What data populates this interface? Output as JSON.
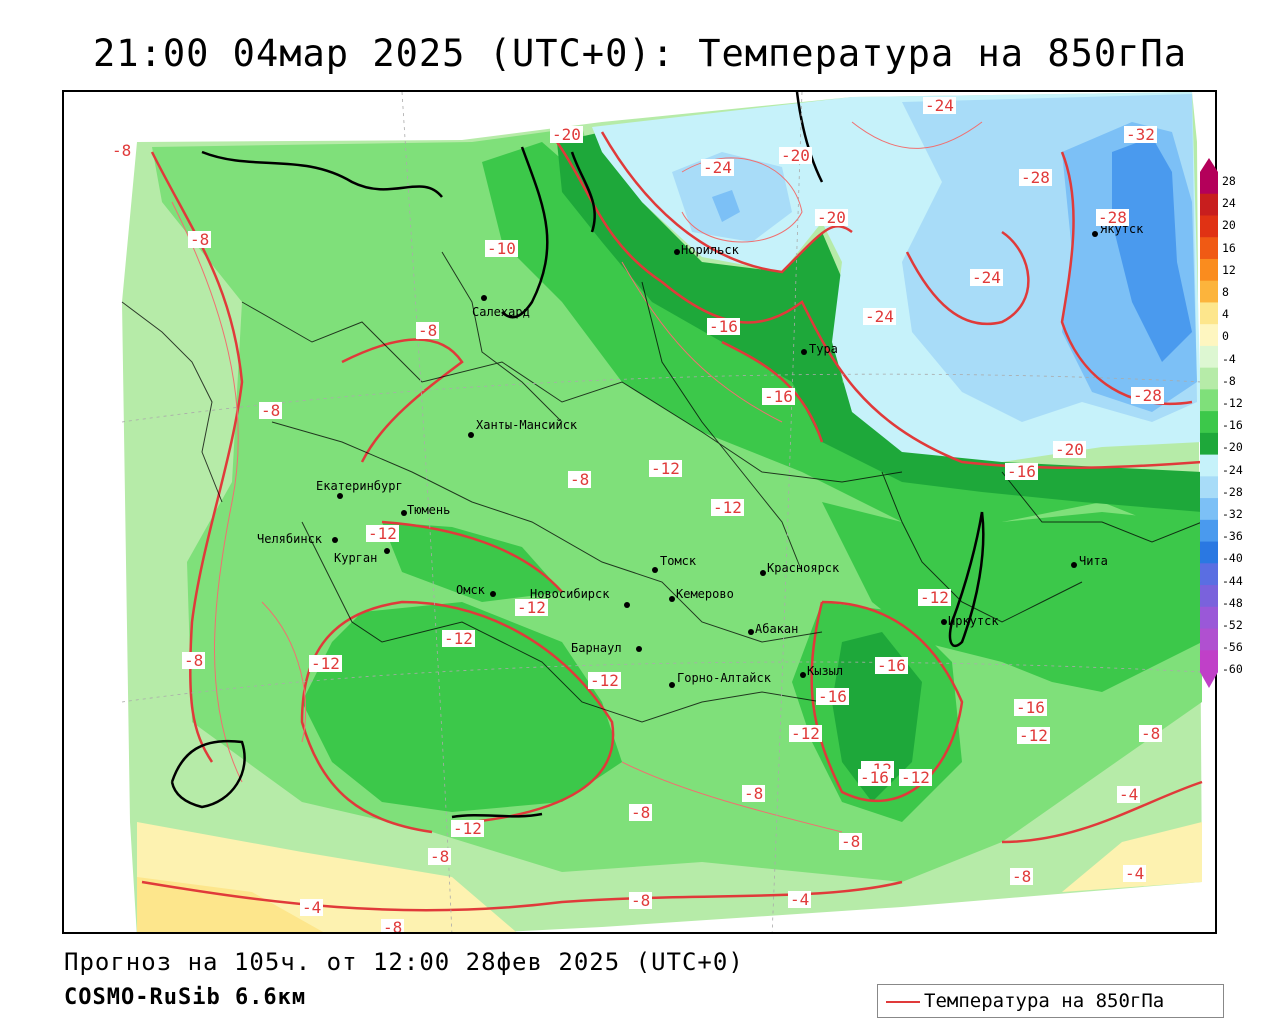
{
  "title": "21:00 04мар 2025 (UTC+0): Температура на 850гПа",
  "footer": {
    "forecast": "Прогноз на 105ч. от 12:00 28фев 2025 (UTC+0)",
    "model": "COSMO-RuSib 6.6км"
  },
  "legend": {
    "label": "Температура на 850гПа",
    "line_color": "#e03a3a"
  },
  "colorbar": {
    "ticks": [
      "28",
      "24",
      "20",
      "16",
      "12",
      "8",
      "4",
      "0",
      "-4",
      "-8",
      "-12",
      "-16",
      "-20",
      "-24",
      "-28",
      "-32",
      "-36",
      "-40",
      "-44",
      "-48",
      "-52",
      "-56",
      "-60"
    ],
    "colors": [
      "#b4005a",
      "#c81e1e",
      "#e03214",
      "#f05a14",
      "#fa8c1e",
      "#fcb43c",
      "#fde68c",
      "#fef6c0",
      "#ddf7d2",
      "#b6eba8",
      "#7fe07a",
      "#3cc84a",
      "#1ea83a",
      "#c6f2fa",
      "#a8dcf8",
      "#7cc0f6",
      "#4a9aee",
      "#2a78e2",
      "#5a6ee2",
      "#7a62dc",
      "#9a58d8",
      "#b050d0",
      "#c040c8"
    ]
  },
  "cities": [
    {
      "name": "Норильск"
    },
    {
      "name": "Салехард"
    },
    {
      "name": "Тура"
    },
    {
      "name": "Якутск"
    },
    {
      "name": "Ханты-Мансийск"
    },
    {
      "name": "Екатеринбург"
    },
    {
      "name": "Тюмень"
    },
    {
      "name": "Челябинск"
    },
    {
      "name": "Курган"
    },
    {
      "name": "Омск"
    },
    {
      "name": "Томск"
    },
    {
      "name": "Красноярск"
    },
    {
      "name": "Новосибирск"
    },
    {
      "name": "Кемерово"
    },
    {
      "name": "Барнаул"
    },
    {
      "name": "Абакан"
    },
    {
      "name": "Иркутск"
    },
    {
      "name": "Чита"
    },
    {
      "name": "Кызыл"
    },
    {
      "name": "Горно-Алтайск"
    }
  ],
  "contour_labels": [
    "-8",
    "-8",
    "-20",
    "-24",
    "-20",
    "-24",
    "-32",
    "-28",
    "-28",
    "-20",
    "-10",
    "-24",
    "-24",
    "-8",
    "-16",
    "-16",
    "-8",
    "-20",
    "-28",
    "-12",
    "-8",
    "-12",
    "-16",
    "-12",
    "-12",
    "-12",
    "-12",
    "-8",
    "-12",
    "-12",
    "-16",
    "-16",
    "-16",
    "-12",
    "-12",
    "-8",
    "-12",
    "-8",
    "-8",
    "-16",
    "-12",
    "-12",
    "-8",
    "-8",
    "-8",
    "-4",
    "-4",
    "-8",
    "-4",
    "-4",
    "-8"
  ]
}
